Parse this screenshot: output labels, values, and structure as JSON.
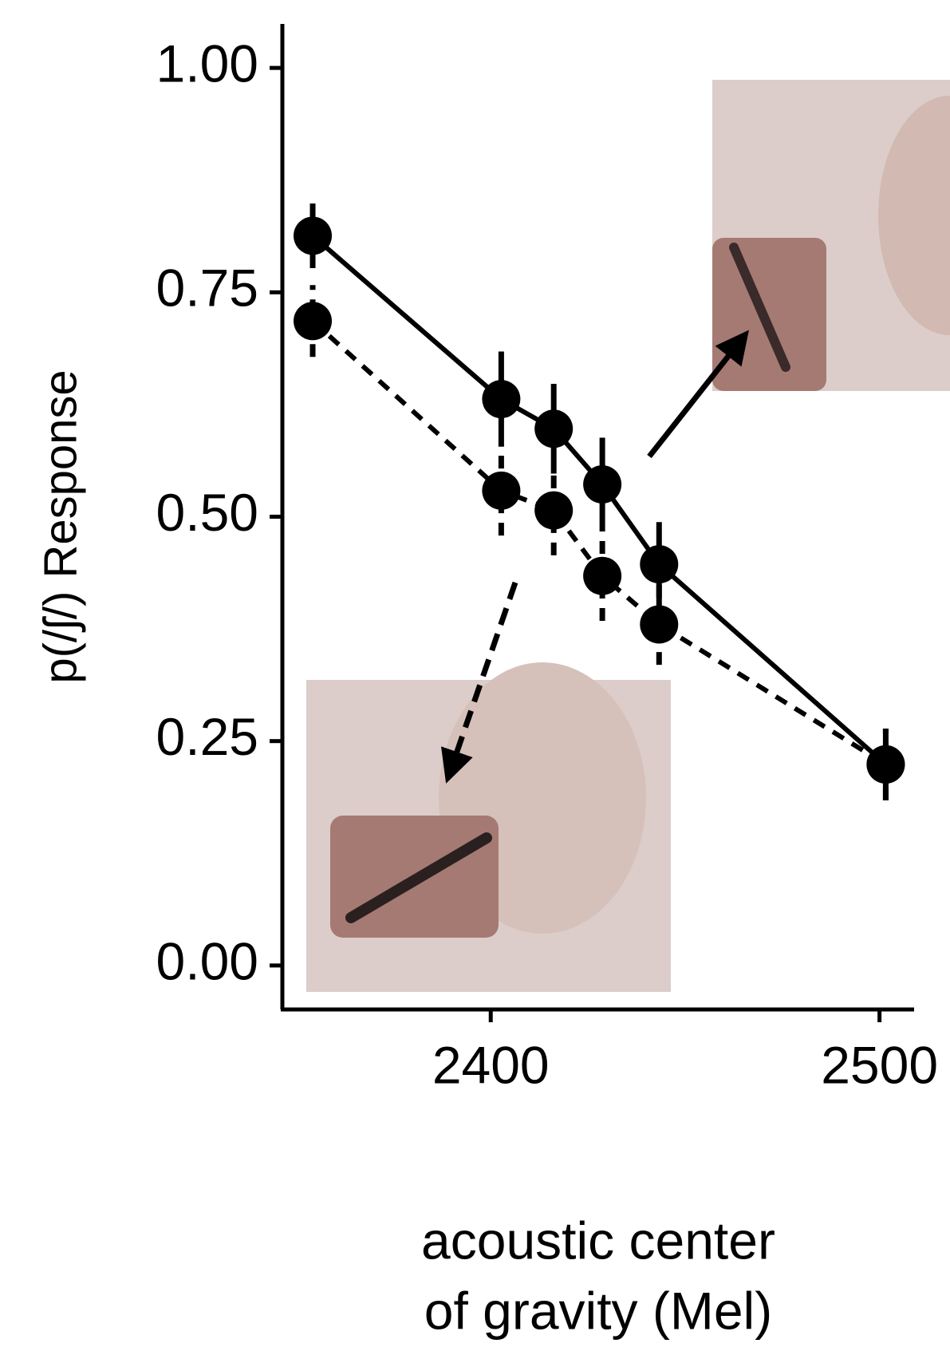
{
  "chart_data": {
    "type": "line",
    "ylabel": "p(/ʃ/) Response",
    "xlabel": [
      "acoustic center",
      "of gravity (Mel)"
    ],
    "x": [
      2354.2,
      2402.7,
      2416.2,
      2428.7,
      2443.3,
      2501.6
    ],
    "series": [
      {
        "color": "#000000",
        "linestyle": "solid",
        "values": [
          0.813,
          0.631,
          0.598,
          0.536,
          0.447,
          0.224
        ],
        "error": [
          0.036,
          0.053,
          0.05,
          0.052,
          0.047,
          0.04
        ]
      },
      {
        "color": "#000000",
        "linestyle": "dashed",
        "values": [
          0.718,
          0.529,
          0.507,
          0.434,
          0.38,
          0.224
        ],
        "error": [
          0.04,
          0.05,
          0.05,
          0.05,
          0.045,
          0.04
        ]
      }
    ],
    "xlim": [
      2346.4,
      2508.9
    ],
    "ylim": [
      -0.049,
      1.049
    ],
    "xticks": [
      2400,
      2500
    ],
    "yticks": [
      {
        "value": 0,
        "label": "0.00"
      },
      {
        "value": 0.25,
        "label": "0.25"
      },
      {
        "value": 0.5,
        "label": "0.50"
      },
      {
        "value": 0.75,
        "label": "0.75"
      },
      {
        "value": 1,
        "label": "1.00"
      }
    ]
  }
}
